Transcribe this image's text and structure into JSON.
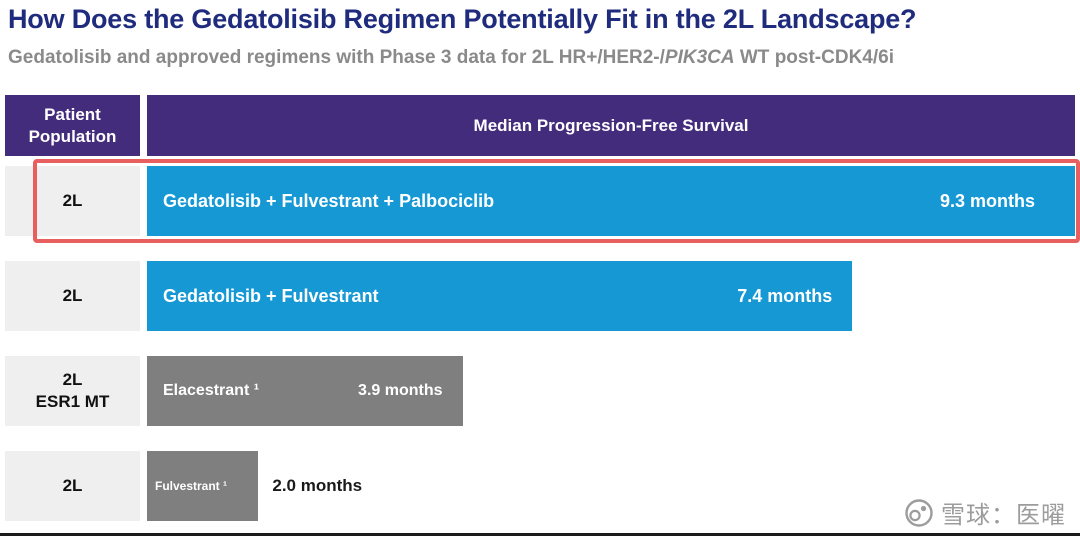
{
  "slide": {
    "title": "How Does the Gedatolisib Regimen Potentially Fit in the 2L Landscape?",
    "subtitle": {
      "prefix": "Gedatolisib and approved regimens with Phase 3 data for 2L HR+/HER2-/",
      "italic": "PIK3CA",
      "suffix": " WT post-CDK4/6i"
    }
  },
  "table": {
    "header": {
      "population": "Patient Population",
      "pfs": "Median Progression-Free Survival"
    },
    "rows": [
      {
        "population": "2L",
        "regimen": "Gedatolisib + Fulvestrant + Palbociclib",
        "months": "9.3 months",
        "width_pct": 100,
        "bar_color": "#1598d4",
        "months_inside": true,
        "highlighted": true
      },
      {
        "population": "2L",
        "regimen": "Gedatolisib + Fulvestrant",
        "months": "7.4 months",
        "width_pct": 76,
        "bar_color": "#1598d4",
        "months_inside": true,
        "highlighted": false
      },
      {
        "population": "2L\nESR1 MT",
        "regimen": "Elacestrant ¹",
        "months": "3.9 months",
        "width_pct": 34,
        "bar_color": "#7f7f7f",
        "months_inside": true,
        "highlighted": false
      },
      {
        "population": "2L",
        "regimen": "Fulvestrant ¹",
        "months": "2.0 months",
        "width_pct": 12,
        "bar_color": "#7f7f7f",
        "months_inside": false,
        "highlighted": false
      }
    ]
  },
  "watermark": {
    "text": "雪球：医曜"
  },
  "colors": {
    "title": "#1f2b7d",
    "subtitle": "#8a8a8a",
    "header_bg": "#442c7d",
    "blue_bar": "#1598d4",
    "gray_bar": "#7f7f7f",
    "highlight_border": "#e75f5f",
    "row_label_bg": "#efefef"
  },
  "chart_data": {
    "type": "bar",
    "orientation": "horizontal",
    "title": "Median Progression-Free Survival",
    "unit": "months",
    "categories": [
      "2L",
      "2L",
      "2L ESR1 MT",
      "2L"
    ],
    "series_labels": [
      "Gedatolisib + Fulvestrant + Palbociclib",
      "Gedatolisib + Fulvestrant",
      "Elacestrant",
      "Fulvestrant"
    ],
    "values": [
      9.3,
      7.4,
      3.9,
      2.0
    ],
    "footnote_markers": [
      null,
      null,
      "1",
      "1"
    ],
    "highlighted_index": 0,
    "xlim": [
      0,
      9.3
    ],
    "grid": false,
    "legend": "none"
  }
}
